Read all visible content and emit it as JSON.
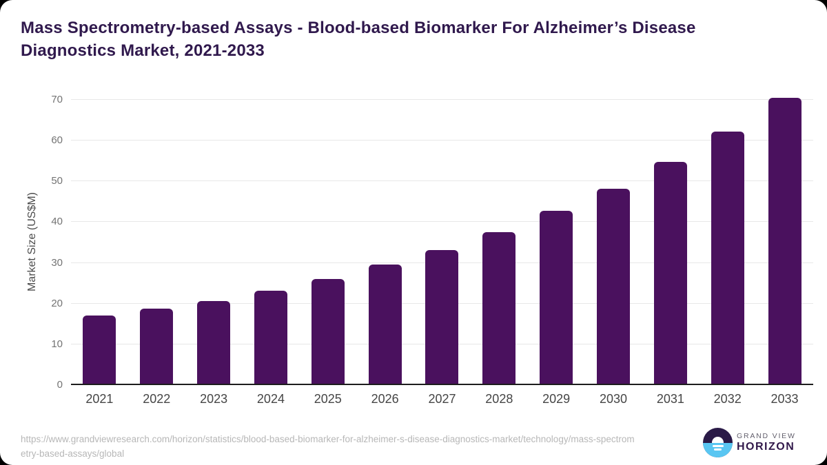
{
  "page": {
    "outer_background": "#000000",
    "card_background": "#ffffff"
  },
  "header": {
    "title_line1": "Mass Spectrometry-based Assays - Blood-based Biomarker For Alzheimer’s Disease",
    "title_line2": "Diagnostics Market, 2021-2033"
  },
  "chart_data": {
    "type": "bar",
    "title": "Mass Spectrometry-based Assays - Blood-based Biomarker For Alzheimer’s Disease Diagnostics Market, 2021-2033",
    "ylabel": "Market Size (US$M)",
    "xlabel": "",
    "categories": [
      "2021",
      "2022",
      "2023",
      "2024",
      "2025",
      "2026",
      "2027",
      "2028",
      "2029",
      "2030",
      "2031",
      "2032",
      "2033"
    ],
    "values": [
      17.1,
      18.8,
      20.7,
      23.1,
      26.1,
      29.5,
      33.2,
      37.6,
      42.7,
      48.2,
      54.7,
      62.2,
      70.5
    ],
    "yticks": [
      0,
      10,
      20,
      30,
      40,
      50,
      60,
      70
    ],
    "ylim": [
      0,
      72
    ],
    "grid": "horizontal",
    "legend": "none",
    "bar_color": "#4A115E",
    "title_color": "#30194D",
    "gridline_color": "#E7E7E7",
    "axis_line_color": "#1C1C1C",
    "tick_label_color": "#737373",
    "x_label_color": "#454545",
    "y_axis_title_color": "#4C4C4C"
  },
  "footer": {
    "source_url": "https://www.grandviewresearch.com/horizon/statistics/blood-based-biomarker-for-alzheimer-s-disease-diagnostics-market/technology/mass-spectrometry-based-assays/global",
    "logo": {
      "brand_line1": "GRAND VIEW",
      "brand_line2": "HORIZON",
      "mark_top_color": "#2A1A47",
      "mark_bottom_color": "#59C6F2"
    }
  }
}
